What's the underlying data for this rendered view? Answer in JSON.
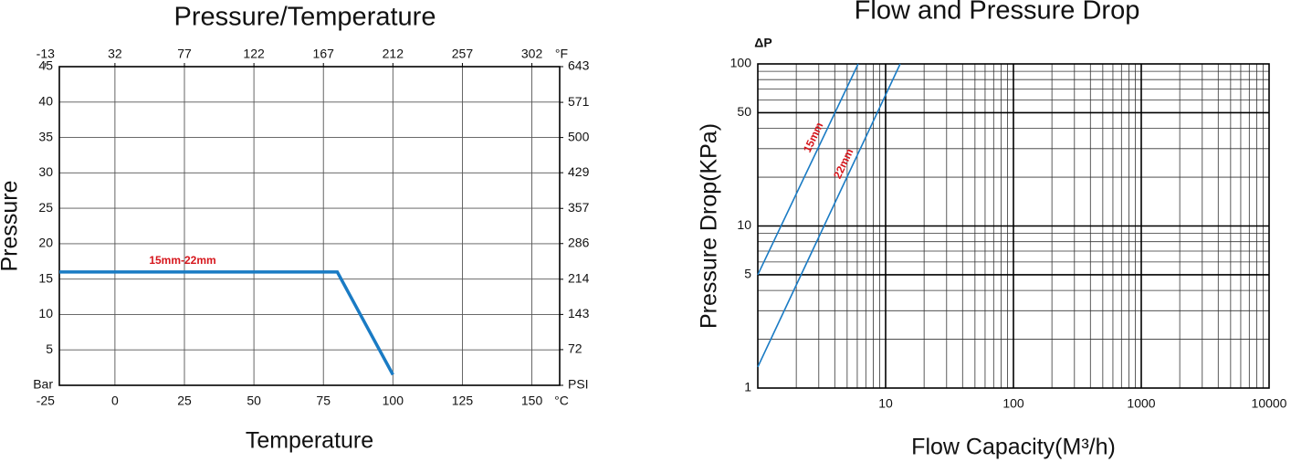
{
  "chart_data": [
    {
      "type": "line",
      "title": "Pressure/Temperature",
      "x_label": "Temperature",
      "y_label": "Pressure",
      "x_unit": "°C",
      "x2_unit": "°F",
      "xlim": [
        -20,
        160
      ],
      "xticks": [
        -25,
        0,
        25,
        50,
        75,
        100,
        125,
        150
      ],
      "x2lim": [
        -4,
        320
      ],
      "x2ticks": [
        -13,
        32,
        77,
        122,
        167,
        212,
        257,
        302
      ],
      "ylim": [
        0,
        45
      ],
      "yticks": [
        {
          "value": 0,
          "label": "Bar"
        },
        5,
        10,
        15,
        20,
        25,
        30,
        35,
        40,
        45
      ],
      "y2lim": [
        0,
        643
      ],
      "y2ticks": [
        {
          "value": 0,
          "label": "PSI"
        },
        72,
        143,
        214,
        286,
        357,
        429,
        500,
        571,
        643
      ],
      "grid": true,
      "x": [
        -20,
        80,
        100
      ],
      "series": [
        {
          "name": "15mm-22mm",
          "color": "#1a7bc4",
          "values": [
            16,
            16,
            1.5
          ]
        }
      ]
    },
    {
      "type": "line",
      "title": "Flow and Pressure Drop",
      "x_label": "Flow Capacity(M³/h)",
      "y_label": "Pressure Drop(KPa)",
      "y_unit": "ΔP",
      "log_x": true,
      "log_y": true,
      "xlim": [
        1,
        10000
      ],
      "xticks": [
        10,
        100,
        1000,
        10000
      ],
      "ylim": [
        1,
        100
      ],
      "yticks": [
        1,
        5,
        10,
        50,
        100
      ],
      "grid": true,
      "series": [
        {
          "name": "15mm",
          "color": "#1a7bc4",
          "x": [
            1,
            6.1
          ],
          "values": [
            5,
            100
          ]
        },
        {
          "name": "22mm",
          "color": "#1a7bc4",
          "x": [
            1,
            13
          ],
          "values": [
            1.35,
            100
          ]
        }
      ]
    }
  ]
}
